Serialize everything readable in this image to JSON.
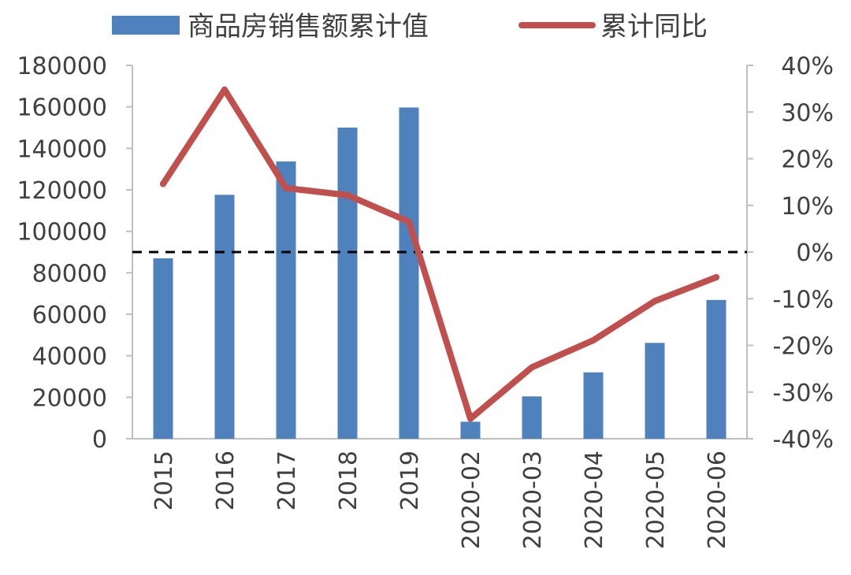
{
  "chart_data": {
    "type": "bar",
    "categories": [
      "2015",
      "2016",
      "2017",
      "2018",
      "2019",
      "2020-02",
      "2020-03",
      "2020-04",
      "2020-05",
      "2020-06"
    ],
    "series": [
      {
        "name": "商品房销售额累计值",
        "type": "bar",
        "axis": "left",
        "color": "#4F81BD",
        "values": [
          87000,
          117600,
          133700,
          150000,
          159700,
          8200,
          20400,
          32000,
          46200,
          66900
        ]
      },
      {
        "name": "累计同比",
        "type": "line",
        "axis": "right",
        "color": "#C0504D",
        "values": [
          0.146,
          0.348,
          0.137,
          0.122,
          0.065,
          -0.357,
          -0.247,
          -0.189,
          -0.105,
          -0.054
        ]
      }
    ],
    "y_left": {
      "range": [
        0,
        180000
      ],
      "ticks": [
        "0",
        "20000",
        "40000",
        "60000",
        "80000",
        "100000",
        "120000",
        "140000",
        "160000",
        "180000"
      ]
    },
    "y_right": {
      "range": [
        -0.4,
        0.4
      ],
      "ticks": [
        "-40%",
        "-30%",
        "-20%",
        "-10%",
        "0%",
        "10%",
        "20%",
        "30%",
        "40%"
      ]
    },
    "reference_line": {
      "axis": "right",
      "value": 0,
      "style": "dashed",
      "color": "#000000"
    },
    "legend": {
      "position": "top"
    },
    "grid": false
  }
}
